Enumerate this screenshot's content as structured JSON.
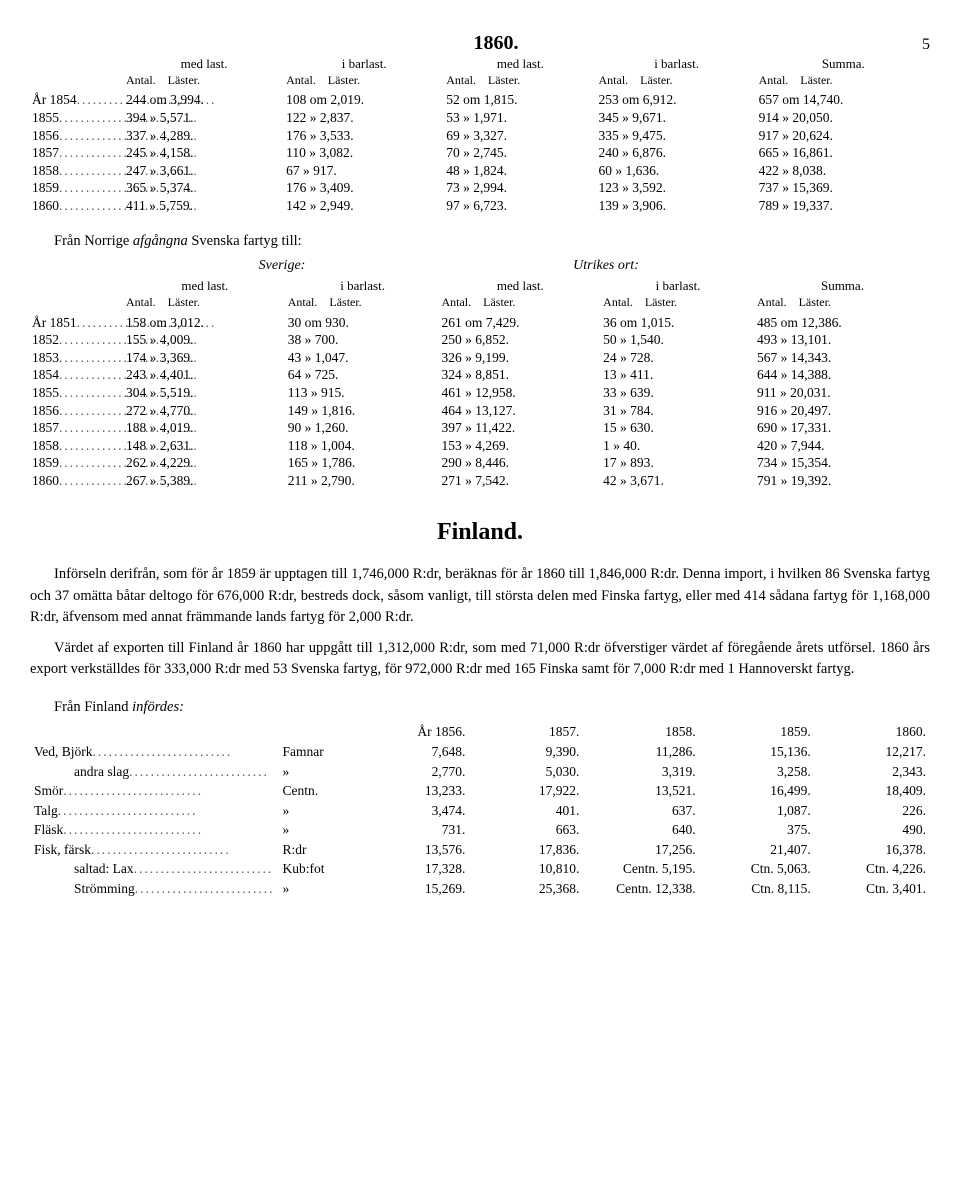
{
  "page": {
    "year_title": "1860.",
    "page_number": "5"
  },
  "table1": {
    "group_headers": [
      "med last.",
      "i barlast.",
      "med last.",
      "i barlast.",
      "Summa."
    ],
    "sub_headers": [
      "Antal.",
      "Läster.",
      "Antal.",
      "Läster.",
      "Antal.",
      "Läster.",
      "Antal.",
      "Läster.",
      "Antal.",
      "Läster."
    ],
    "rows": [
      {
        "y": "År 1854",
        "c": [
          "244 om 3,994.",
          "108 om 2,019.",
          "52 om 1,815.",
          "253 om 6,912.",
          "657 om 14,740."
        ]
      },
      {
        "y": "1855",
        "c": [
          "394 » 5,571.",
          "122 » 2,837.",
          "53 » 1,971.",
          "345 » 9,671.",
          "914 » 20,050."
        ]
      },
      {
        "y": "1856",
        "c": [
          "337 » 4,289.",
          "176 » 3,533.",
          "69 » 3,327.",
          "335 » 9,475.",
          "917 » 20,624."
        ]
      },
      {
        "y": "1857",
        "c": [
          "245 » 4,158.",
          "110 » 3,082.",
          "70 » 2,745.",
          "240 » 6,876.",
          "665 » 16,861."
        ]
      },
      {
        "y": "1858",
        "c": [
          "247 » 3,661.",
          "67 » 917.",
          "48 » 1,824.",
          "60 » 1,636.",
          "422 » 8,038."
        ]
      },
      {
        "y": "1859",
        "c": [
          "365 » 5,374.",
          "176 » 3,409.",
          "73 » 2,994.",
          "123 » 3,592.",
          "737 » 15,369."
        ]
      },
      {
        "y": "1860",
        "c": [
          "411 » 5,759.",
          "142 » 2,949.",
          "97 » 6,723.",
          "139 » 3,906.",
          "789 » 19,337."
        ]
      }
    ]
  },
  "mid_line": "Från Norrige <i>afgångna</i> Svenska fartyg till:",
  "brace_labels": {
    "left": "Sverige:",
    "right": "Utrikes ort:"
  },
  "table2": {
    "group_headers": [
      "med last.",
      "i barlast.",
      "med last.",
      "i barlast.",
      "Summa."
    ],
    "sub_headers": [
      "Antal.",
      "Läster.",
      "Antal.",
      "Läster.",
      "Antal.",
      "Läster.",
      "Antal.",
      "Läster.",
      "Antal.",
      "Läster."
    ],
    "rows": [
      {
        "y": "År 1851",
        "c": [
          "158 om 3,012.",
          "30 om 930.",
          "261 om 7,429.",
          "36 om 1,015.",
          "485 om 12,386."
        ]
      },
      {
        "y": "1852",
        "c": [
          "155 » 4,009.",
          "38 » 700.",
          "250 » 6,852.",
          "50 » 1,540.",
          "493 » 13,101."
        ]
      },
      {
        "y": "1853",
        "c": [
          "174 » 3,369.",
          "43 » 1,047.",
          "326 » 9,199.",
          "24 » 728.",
          "567 » 14,343."
        ]
      },
      {
        "y": "1854",
        "c": [
          "243 » 4,401.",
          "64 » 725.",
          "324 » 8,851.",
          "13 » 411.",
          "644 » 14,388."
        ]
      },
      {
        "y": "1855",
        "c": [
          "304 » 5,519.",
          "113 » 915.",
          "461 » 12,958.",
          "33 » 639.",
          "911 » 20,031."
        ]
      },
      {
        "y": "1856",
        "c": [
          "272 » 4,770.",
          "149 » 1,816.",
          "464 » 13,127.",
          "31 » 784.",
          "916 » 20,497."
        ]
      },
      {
        "y": "1857",
        "c": [
          "188 » 4,019.",
          "90 » 1,260.",
          "397 » 11,422.",
          "15 » 630.",
          "690 » 17,331."
        ]
      },
      {
        "y": "1858",
        "c": [
          "148 » 2,631.",
          "118 » 1,004.",
          "153 » 4,269.",
          "1 » 40.",
          "420 » 7,944."
        ]
      },
      {
        "y": "1859",
        "c": [
          "262 » 4,229.",
          "165 » 1,786.",
          "290 » 8,446.",
          "17 » 893.",
          "734 » 15,354."
        ]
      },
      {
        "y": "1860",
        "c": [
          "267 » 5,389.",
          "211 » 2,790.",
          "271 » 7,542.",
          "42 » 3,671.",
          "791 » 19,392."
        ]
      }
    ]
  },
  "finland_title": "Finland.",
  "para1": "Införseln derifrån, som för år 1859 är upptagen till 1,746,000 R:dr, beräknas för år 1860 till 1,846,000 R:dr. Denna import, i hvilken 86 Svenska fartyg och 37 omätta båtar deltogo för 676,000 R:dr, bestreds dock, såsom vanligt, till största delen med Finska fartyg, eller med 414 sådana fartyg för 1,168,000 R:dr, äfvensom med annat främmande lands fartyg för 2,000 R:dr.",
  "para2": "Värdet af exporten till Finland år 1860 har uppgått till 1,312,000 R:dr, som med 71,000 R:dr öfverstiger värdet af föregående årets utförsel. 1860 års export verkställdes för 333,000 R:dr med 53 Svenska fartyg, för 972,000 R:dr med 165 Finska samt för 7,000 R:dr med 1 Hannoverskt fartyg.",
  "infordes_head": "Från Finland <i>infördes:</i>",
  "yrs": [
    "År 1856.",
    "1857.",
    "1858.",
    "1859.",
    "1860."
  ],
  "goods": [
    {
      "label": "Ved, Björk",
      "unit": "Famnar",
      "v": [
        "7,648.",
        "9,390.",
        "11,286.",
        "15,136.",
        "12,217."
      ]
    },
    {
      "label": "andra slag",
      "indent": true,
      "unit": "»",
      "v": [
        "2,770.",
        "5,030.",
        "3,319.",
        "3,258.",
        "2,343."
      ]
    },
    {
      "label": "Smör",
      "unit": "Centn.",
      "v": [
        "13,233.",
        "17,922.",
        "13,521.",
        "16,499.",
        "18,409."
      ]
    },
    {
      "label": "Talg",
      "unit": "»",
      "v": [
        "3,474.",
        "401.",
        "637.",
        "1,087.",
        "226."
      ]
    },
    {
      "label": "Fläsk",
      "unit": "»",
      "v": [
        "731.",
        "663.",
        "640.",
        "375.",
        "490."
      ]
    },
    {
      "label": "Fisk, färsk",
      "unit": "R:dr",
      "v": [
        "13,576.",
        "17,836.",
        "17,256.",
        "21,407.",
        "16,378."
      ]
    },
    {
      "label": "saltad: Lax",
      "indent": true,
      "unit": "Kub:fot",
      "v": [
        "17,328.",
        "10,810.",
        "Centn. 5,195.",
        "Ctn. 5,063.",
        "Ctn. 4,226."
      ]
    },
    {
      "label": "Strömming",
      "indent": true,
      "unit": "»",
      "v": [
        "15,269.",
        "25,368.",
        "Centn. 12,338.",
        "Ctn. 8,115.",
        "Ctn. 3,401."
      ]
    }
  ]
}
